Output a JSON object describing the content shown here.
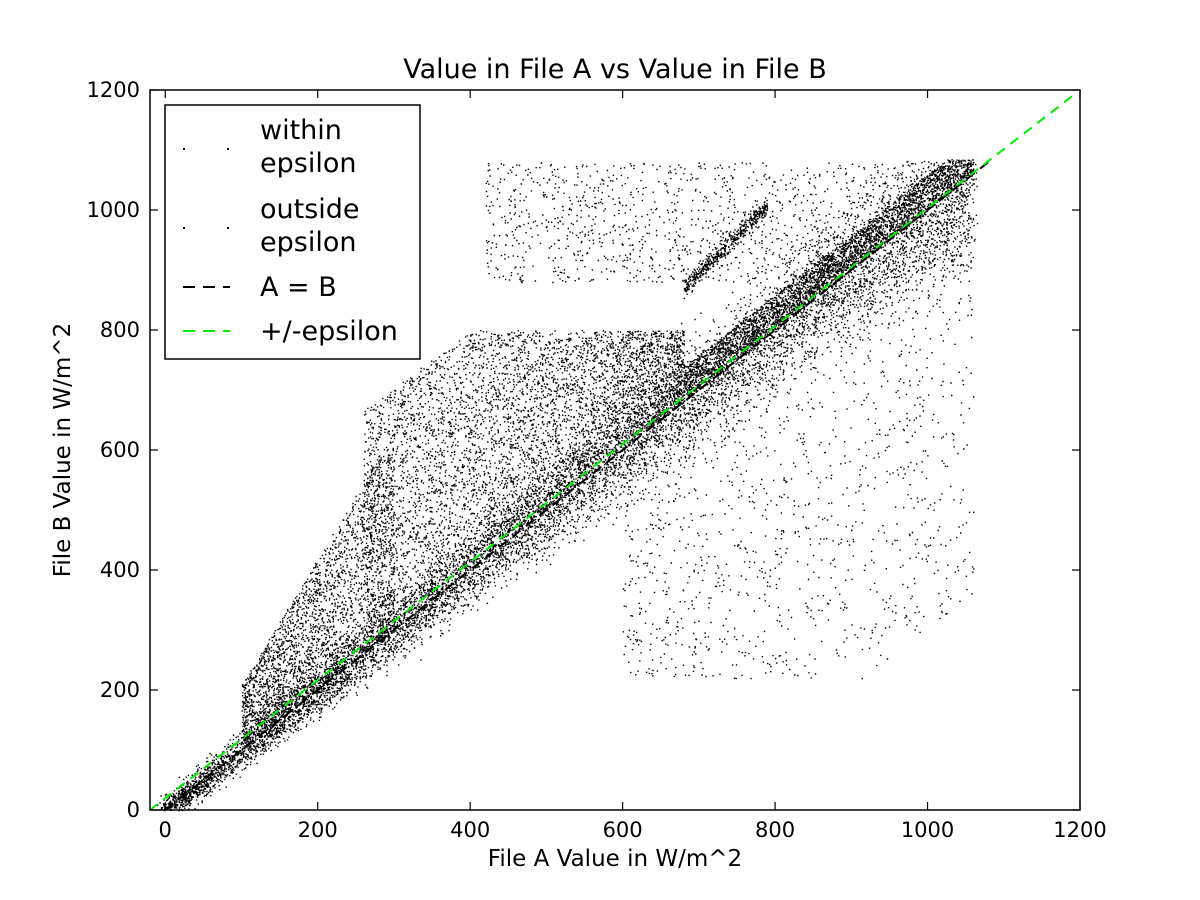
{
  "chart_data": {
    "type": "scatter",
    "title": "Value in File A vs Value in File B",
    "xlabel": "File A Value in W/m^2",
    "ylabel": "File B Value in W/m^2",
    "xlim": [
      -20,
      1200
    ],
    "ylim": [
      0,
      1200
    ],
    "xticks": [
      "0",
      "200",
      "400",
      "600",
      "800",
      "1000",
      "1200"
    ],
    "yticks": [
      "0",
      "200",
      "400",
      "600",
      "800",
      "1000",
      "1200"
    ],
    "xtick_values": [
      0,
      200,
      400,
      600,
      800,
      1000,
      1200
    ],
    "ytick_values": [
      0,
      200,
      400,
      600,
      800,
      1000,
      1200
    ],
    "grid": false,
    "legend_position": "top-left",
    "series": [
      {
        "name": "within\nepsilon",
        "kind": "points",
        "color": "#000000",
        "approx_points": [
          [
            0,
            0
          ],
          [
            100,
            100
          ],
          [
            300,
            320
          ],
          [
            500,
            500
          ],
          [
            700,
            720
          ],
          [
            900,
            900
          ],
          [
            1050,
            1050
          ]
        ]
      },
      {
        "name": "outside\nepsilon",
        "kind": "points",
        "color": "#000000",
        "approx_regions": [
          {
            "x": [
              250,
              700
            ],
            "y": [
              450,
              800
            ],
            "desc": "dense cloud above diagonal"
          },
          {
            "x": [
              420,
              1060
            ],
            "y": [
              880,
              1080
            ],
            "desc": "sparse horizontal streaks near top"
          },
          {
            "x": [
              700,
              1060
            ],
            "y": [
              240,
              700
            ],
            "desc": "sparse vertical streaks below diagonal"
          }
        ]
      },
      {
        "name": "A = B",
        "kind": "line",
        "style": "dashed",
        "color": "#000000",
        "x": [
          0,
          1080
        ],
        "y": [
          0,
          1080
        ]
      },
      {
        "name": "+/-epsilon",
        "kind": "line",
        "style": "dashed",
        "color": "#00ee00",
        "x": [
          -20,
          1190
        ],
        "y": [
          0,
          1190
        ]
      }
    ]
  }
}
